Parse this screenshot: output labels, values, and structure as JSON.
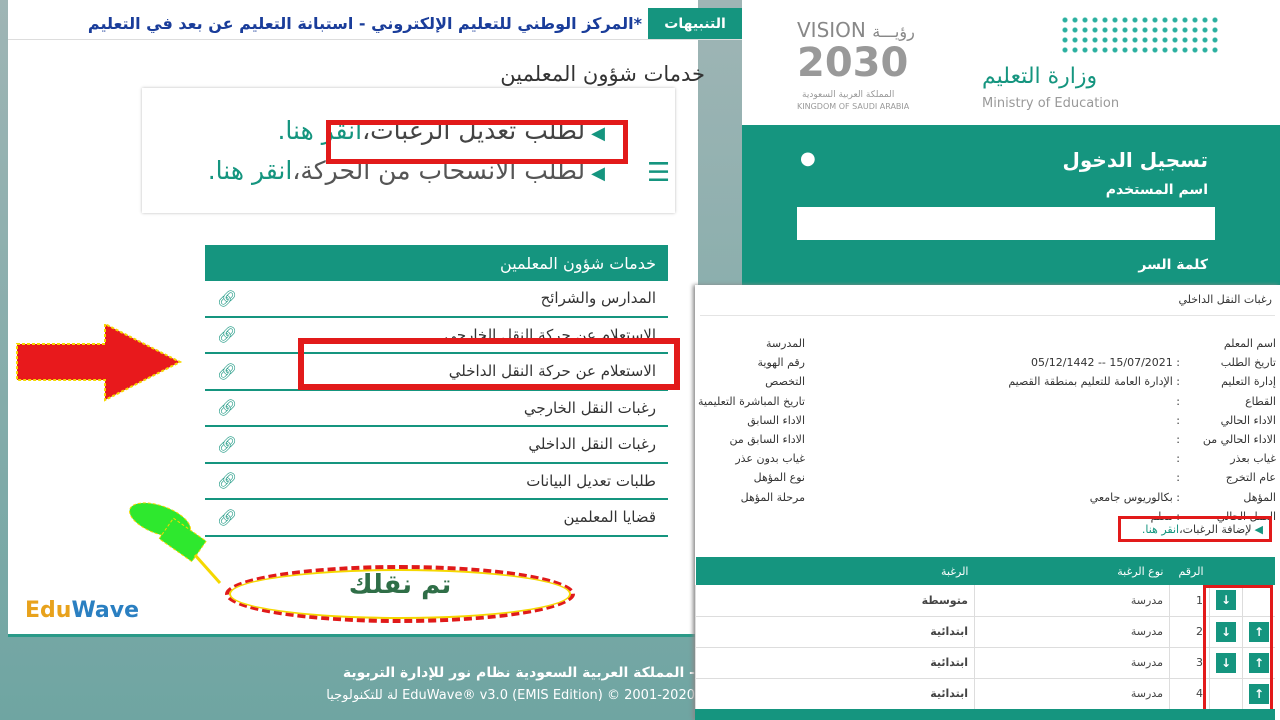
{
  "alerts": {
    "label": "التنبيهات",
    "ticker": "*المركز الوطني للتعليم الإلكتروني - استبانة التعليم عن بعد في التعليم"
  },
  "page_title": "خدمات شؤون المعلمين",
  "inset": {
    "link1": "لطلب تعديل الرغبات،",
    "link1_here": "انقر هنا.",
    "link2": "لطلب الانسحاب من الحركة،",
    "link2_here": "انقر هنا."
  },
  "menu": {
    "title": "خدمات شؤون المعلمين",
    "items": [
      {
        "label": "المدارس والشرائح"
      },
      {
        "label": "الاستعلام عن حركة النقل الخارجي"
      },
      {
        "label": "الاستعلام عن حركة النقل الداخلي"
      },
      {
        "label": "رغبات النقل الخارجي"
      },
      {
        "label": "رغبات النقل الداخلي"
      },
      {
        "label": "طلبات تعديل البيانات"
      },
      {
        "label": "قضايا المعلمين"
      }
    ]
  },
  "annotation": {
    "moved": "تم نقلك"
  },
  "logo": {
    "edu": "Edu",
    "wave": "Wave"
  },
  "footer": {
    "line1": "- المملكة العربية السعودية نظام نور للإدارة التربوية",
    "line2": "EduWave® v3.0 (EMIS Edition) © 2001-2020 لة للتكنولوجيا"
  },
  "login": {
    "vision": "VISION",
    "vision_ar": "رؤيـــة",
    "year": "2030",
    "kingdom_ar": "المملكة العربية السعودية",
    "kingdom_en": "KINGDOM OF SAUDI ARABIA",
    "ministry_ar": "وزارة التعليم",
    "ministry_en": "Ministry of Education",
    "title": "تسجيل الدخول",
    "username_label": "اسم المستخدم",
    "username_value": "",
    "password_label": "كلمة السر"
  },
  "detail": {
    "title": "رغبات النقل الداخلي",
    "right_labels": [
      "اسم المعلم",
      "تاريخ الطلب",
      "إدارة التعليم",
      "القطاع",
      "الاداء الحالي",
      "الاداء الحالي من",
      "غياب بعذر",
      "عام التخرج",
      "المؤهل",
      "العمل الحالي"
    ],
    "right_values": [
      "",
      ": 15/07/2021 -- 05/12/1442",
      ": الإدارة العامة للتعليم بمنطقة القصيم",
      ":",
      ":",
      ":",
      ":",
      ":",
      ": بكالوريوس جامعي",
      ": معلم"
    ],
    "left_labels": [
      "المدرسة",
      "رقم الهوية",
      "التخصص",
      "تاريخ المباشرة التعليمية",
      "الاداء السابق",
      "الاداء السابق من",
      "غياب بدون عذر",
      "نوع المؤهل",
      "مرحلة المؤهل"
    ],
    "add_link": "لإضافة الرغبات،",
    "add_link_here": "انقر هنا."
  },
  "wishes": {
    "headers": {
      "num": "الرقم",
      "type": "نوع الرغبة",
      "wish": "الرغبة"
    },
    "rows": [
      {
        "num": "1",
        "type": "مدرسة",
        "wish": "متوسطة",
        "down": true,
        "up": false
      },
      {
        "num": "2",
        "type": "مدرسة",
        "wish": "ابتدائية",
        "down": true,
        "up": true
      },
      {
        "num": "3",
        "type": "مدرسة",
        "wish": "ابتدائية",
        "down": true,
        "up": true
      },
      {
        "num": "4",
        "type": "مدرسة",
        "wish": "ابتدائية",
        "down": false,
        "up": true
      }
    ]
  },
  "colors": {
    "teal": "#15957f",
    "highlight_red": "#e21a1a",
    "ticker_blue": "#1a3d9a"
  }
}
